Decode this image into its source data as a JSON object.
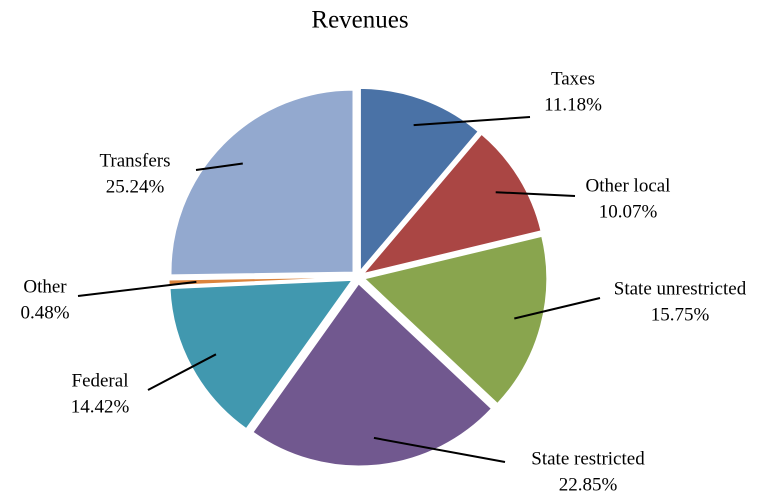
{
  "chart_data": {
    "type": "pie",
    "title": "Revenues",
    "categories": [
      "Taxes",
      "Other local",
      "State unrestricted",
      "State restricted",
      "Federal",
      "Other",
      "Transfers"
    ],
    "values": [
      11.18,
      10.07,
      15.75,
      22.85,
      14.42,
      0.48,
      25.24
    ],
    "value_labels": [
      "11.18%",
      "10.07%",
      "15.75%",
      "22.85%",
      "14.42%",
      "0.48%",
      "25.24%"
    ],
    "colors": [
      "#4a72a6",
      "#aa4644",
      "#89a54e",
      "#71588f",
      "#4198af",
      "#db843d",
      "#93a9cf"
    ]
  }
}
